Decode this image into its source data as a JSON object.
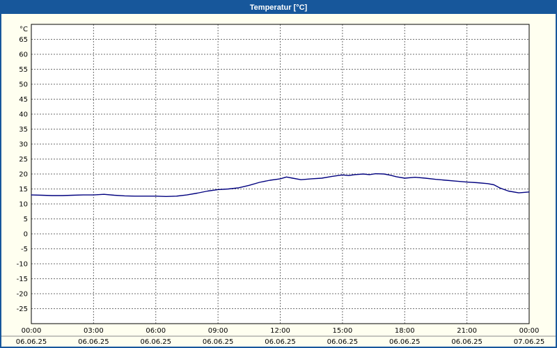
{
  "window": {
    "title": "Temperatur [°C]"
  },
  "colors": {
    "titlebar": "#17579b",
    "border": "#17579b",
    "background": "#fffff0",
    "plot_bg": "#ffffff",
    "grid": "#6e6e6e",
    "axis": "#000000",
    "line": "#00007f",
    "text": "#000000",
    "footer_divider": "#8a8a8a"
  },
  "chart_data": {
    "type": "line",
    "title": "Temperatur [°C]",
    "ylabel": "°C",
    "xlabel": "",
    "ylim": [
      -30,
      70
    ],
    "ytick_step": 5,
    "yticks": [
      65,
      60,
      55,
      50,
      45,
      40,
      35,
      30,
      25,
      20,
      15,
      10,
      5,
      0,
      -5,
      -10,
      -15,
      -20,
      -25
    ],
    "xlim_hours": [
      0,
      24
    ],
    "grid": true,
    "grid_style": "dashed",
    "legend_position": "none",
    "xticks": [
      {
        "hour": 0,
        "time": "00:00",
        "date": "06.06.25"
      },
      {
        "hour": 3,
        "time": "03:00",
        "date": "06.06.25"
      },
      {
        "hour": 6,
        "time": "06:00",
        "date": "06.06.25"
      },
      {
        "hour": 9,
        "time": "09:00",
        "date": "06.06.25"
      },
      {
        "hour": 12,
        "time": "12:00",
        "date": "06.06.25"
      },
      {
        "hour": 15,
        "time": "15:00",
        "date": "06.06.25"
      },
      {
        "hour": 18,
        "time": "18:00",
        "date": "06.06.25"
      },
      {
        "hour": 21,
        "time": "21:00",
        "date": "06.06.25"
      },
      {
        "hour": 24,
        "time": "00:00",
        "date": "07.06.25"
      }
    ],
    "series": [
      {
        "name": "Temperatur",
        "color": "#00007f",
        "x_hours": [
          0,
          0.5,
          1,
          1.5,
          2,
          2.5,
          3,
          3.5,
          4,
          4.5,
          5,
          5.5,
          6,
          6.5,
          7,
          7.5,
          8,
          8.5,
          9,
          9.5,
          10,
          10.5,
          11,
          11.5,
          12,
          12.3,
          12.6,
          13,
          13.5,
          14,
          14.5,
          15,
          15.3,
          15.6,
          16,
          16.3,
          16.6,
          17,
          17.3,
          17.6,
          18,
          18.5,
          19,
          19.5,
          20,
          20.5,
          21,
          21.5,
          22,
          22.3,
          22.6,
          23,
          23.5,
          24
        ],
        "values": [
          13.0,
          12.9,
          12.8,
          12.8,
          12.9,
          13.0,
          13.0,
          13.2,
          12.9,
          12.7,
          12.6,
          12.6,
          12.6,
          12.5,
          12.6,
          13.0,
          13.6,
          14.3,
          14.8,
          15.0,
          15.4,
          16.2,
          17.2,
          17.9,
          18.4,
          19.0,
          18.6,
          18.1,
          18.4,
          18.6,
          19.2,
          19.7,
          19.5,
          19.8,
          20.0,
          19.8,
          20.1,
          20.0,
          19.6,
          19.1,
          18.6,
          18.9,
          18.6,
          18.2,
          17.9,
          17.6,
          17.3,
          17.1,
          16.8,
          16.4,
          15.3,
          14.3,
          13.7,
          14.0
        ]
      }
    ]
  }
}
